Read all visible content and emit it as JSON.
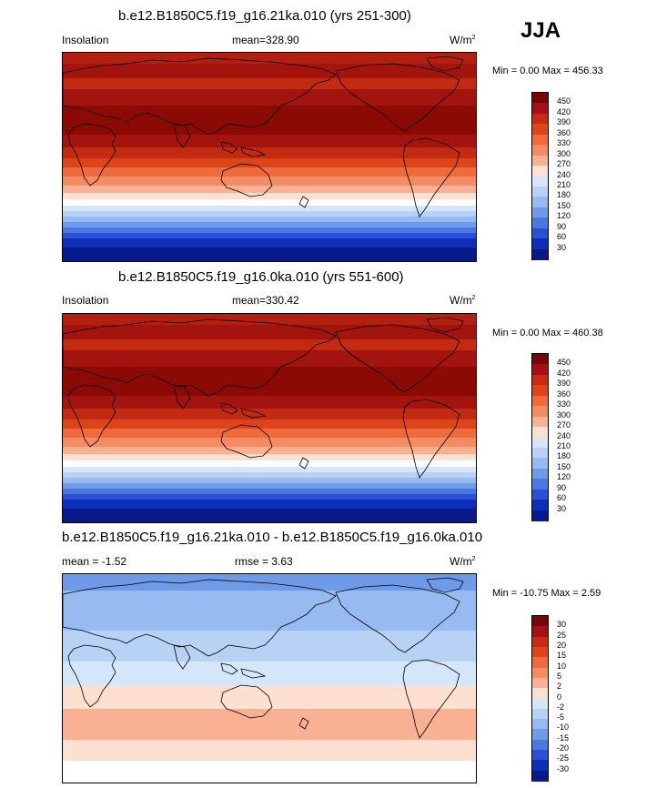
{
  "season": "JJA",
  "panels": [
    {
      "title": "b.e12.B1850C5.f19_g16.21ka.010 (yrs 251-300)",
      "left_label": "Insolation",
      "mean_label": "mean=",
      "mean_value": "328.90",
      "units": "W/m",
      "units_exp": "2",
      "minmax": "Min =   0.00 Max = 456.33",
      "colorbar_labels": [
        "450",
        "420",
        "390",
        "360",
        "330",
        "300",
        "270",
        "240",
        "210",
        "180",
        "150",
        "120",
        "90",
        "60",
        "30"
      ]
    },
    {
      "title": "b.e12.B1850C5.f19_g16.0ka.010 (yrs 551-600)",
      "left_label": "Insolation",
      "mean_label": "mean=",
      "mean_value": "330.42",
      "units": "W/m",
      "units_exp": "2",
      "minmax": "Min =   0.00 Max = 460.38",
      "colorbar_labels": [
        "450",
        "420",
        "390",
        "360",
        "330",
        "300",
        "270",
        "240",
        "210",
        "180",
        "150",
        "120",
        "90",
        "60",
        "30"
      ]
    },
    {
      "title": "b.e12.B1850C5.f19_g16.21ka.010 - b.e12.B1850C5.f19_g16.0ka.010",
      "left_label": "mean =  -1.52",
      "rmse_label": "rmse =   3.63",
      "units": "W/m",
      "units_exp": "2",
      "minmax": "Min = -10.75 Max =   2.59",
      "colorbar_labels": [
        "30",
        "25",
        "20",
        "15",
        "10",
        "5",
        "2",
        "0",
        "-2",
        "-5",
        "-10",
        "-15",
        "-20",
        "-25",
        "-30"
      ]
    }
  ],
  "colors": {
    "abs_scale": [
      "#7a0403",
      "#a50f15",
      "#cb2a12",
      "#e0451a",
      "#f06a3c",
      "#f58b63",
      "#fab092",
      "#fde0d0",
      "#ffffff",
      "#d6e6fa",
      "#b8d2f5",
      "#97baf0",
      "#6f9ae8",
      "#4b77e0",
      "#2a50d8",
      "#0d2fb8",
      "#061a8c"
    ],
    "diff_scale": [
      "#7a0403",
      "#a50f15",
      "#cb2a12",
      "#e0451a",
      "#f06a3c",
      "#f58b63",
      "#fab092",
      "#fde0d0",
      "#ffffff",
      "#d6e6fa",
      "#b8d2f5",
      "#97baf0",
      "#6f9ae8",
      "#4b77e0",
      "#2a50d8",
      "#0d2fb8",
      "#061a8c"
    ]
  }
}
